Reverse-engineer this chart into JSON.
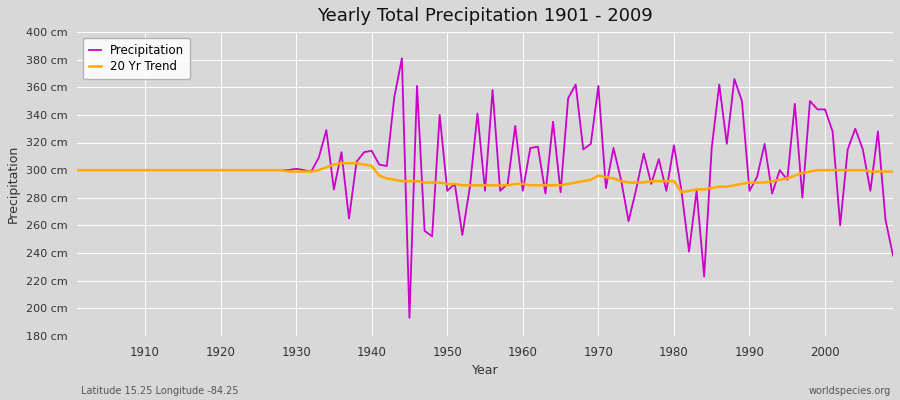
{
  "title": "Yearly Total Precipitation 1901 - 2009",
  "xlabel": "Year",
  "ylabel": "Precipitation",
  "background_color": "#d8d8d8",
  "plot_bg_color": "#d8d8d8",
  "precip_color": "#cc00cc",
  "trend_color": "#ffaa00",
  "precip_label": "Precipitation",
  "trend_label": "20 Yr Trend",
  "ylim": [
    180,
    400
  ],
  "yticks": [
    180,
    200,
    220,
    240,
    260,
    280,
    300,
    320,
    340,
    360,
    380,
    400
  ],
  "xlim_left": 1901,
  "xlim_right": 2009,
  "footer_left": "Latitude 15.25 Longitude -84.25",
  "footer_right": "worldspecies.org",
  "years": [
    1901,
    1902,
    1903,
    1904,
    1905,
    1906,
    1907,
    1908,
    1909,
    1910,
    1911,
    1912,
    1913,
    1914,
    1915,
    1916,
    1917,
    1918,
    1919,
    1920,
    1921,
    1922,
    1923,
    1924,
    1925,
    1926,
    1927,
    1928,
    1929,
    1930,
    1931,
    1932,
    1933,
    1934,
    1935,
    1936,
    1937,
    1938,
    1939,
    1940,
    1941,
    1942,
    1943,
    1944,
    1945,
    1946,
    1947,
    1948,
    1949,
    1950,
    1951,
    1952,
    1953,
    1954,
    1955,
    1956,
    1957,
    1958,
    1959,
    1960,
    1961,
    1962,
    1963,
    1964,
    1965,
    1966,
    1967,
    1968,
    1969,
    1970,
    1971,
    1972,
    1973,
    1974,
    1975,
    1976,
    1977,
    1978,
    1979,
    1980,
    1981,
    1982,
    1983,
    1984,
    1985,
    1986,
    1987,
    1988,
    1989,
    1990,
    1991,
    1992,
    1993,
    1994,
    1995,
    1996,
    1997,
    1998,
    1999,
    2000,
    2001,
    2002,
    2003,
    2004,
    2005,
    2006,
    2007,
    2008,
    2009
  ],
  "precip": [
    300,
    300,
    300,
    300,
    300,
    300,
    300,
    300,
    300,
    300,
    300,
    300,
    300,
    300,
    300,
    300,
    300,
    300,
    300,
    300,
    300,
    300,
    300,
    300,
    300,
    300,
    300,
    300,
    300,
    301,
    300,
    299,
    309,
    329,
    286,
    313,
    265,
    306,
    313,
    314,
    304,
    303,
    353,
    381,
    193,
    361,
    256,
    252,
    340,
    285,
    290,
    253,
    288,
    341,
    285,
    358,
    285,
    290,
    332,
    285,
    316,
    317,
    283,
    335,
    284,
    352,
    362,
    315,
    319,
    361,
    287,
    316,
    293,
    263,
    286,
    312,
    290,
    308,
    285,
    318,
    285,
    241,
    285,
    223,
    316,
    362,
    319,
    366,
    350,
    285,
    295,
    319,
    283,
    300,
    293,
    348,
    280,
    350,
    344,
    344,
    328,
    260,
    315,
    330,
    315,
    285,
    328,
    264,
    238
  ],
  "trend": [
    300,
    300,
    300,
    300,
    300,
    300,
    300,
    300,
    300,
    300,
    300,
    300,
    300,
    300,
    300,
    300,
    300,
    300,
    300,
    300,
    300,
    300,
    300,
    300,
    300,
    300,
    300,
    300,
    299,
    299,
    299,
    299,
    300,
    302,
    304,
    305,
    305,
    305,
    304,
    303,
    296,
    294,
    293,
    292,
    292,
    292,
    291,
    291,
    291,
    290,
    290,
    289,
    289,
    289,
    289,
    289,
    289,
    289,
    290,
    290,
    289,
    289,
    289,
    289,
    289,
    290,
    291,
    292,
    293,
    296,
    295,
    294,
    292,
    291,
    291,
    291,
    292,
    292,
    292,
    292,
    284,
    285,
    286,
    286,
    287,
    288,
    288,
    289,
    290,
    291,
    291,
    291,
    292,
    293,
    294,
    296,
    298,
    299,
    300,
    300,
    300,
    300,
    300,
    300,
    300,
    299,
    299,
    299,
    299
  ]
}
